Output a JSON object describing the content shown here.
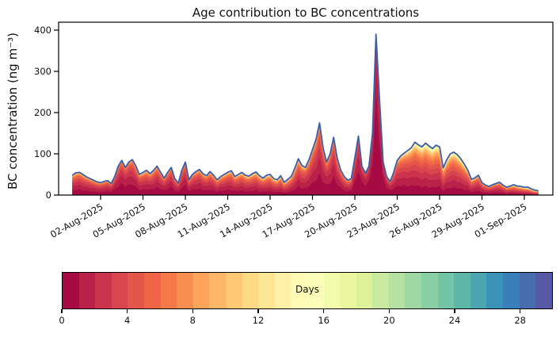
{
  "figure": {
    "background": "#ffffff"
  },
  "chart": {
    "title": "Age contribution to BC concentrations",
    "ylabel": "BC concentration (ng m⁻³)",
    "y_ticks": [
      0,
      100,
      200,
      300,
      400
    ],
    "x_tick_labels": [
      "02-Aug-2025",
      "05-Aug-2025",
      "08-Aug-2025",
      "11-Aug-2025",
      "14-Aug-2025",
      "17-Aug-2025",
      "20-Aug-2025",
      "23-Aug-2025",
      "26-Aug-2025",
      "29-Aug-2025",
      "01-Sep-2025"
    ]
  },
  "chart_data": {
    "type": "area",
    "stacked": true,
    "title": "Age contribution to BC concentrations",
    "xlabel": "",
    "ylabel": "BC concentration (ng m⁻³)",
    "ylim": [
      0,
      420
    ],
    "x_start": "31-Jul-2025 00:00",
    "x_end": "02-Sep-2025 00:00",
    "x_step_days": 0.25,
    "x_tick_dates": [
      "02-Aug-2025",
      "05-Aug-2025",
      "08-Aug-2025",
      "11-Aug-2025",
      "14-Aug-2025",
      "17-Aug-2025",
      "20-Aug-2025",
      "23-Aug-2025",
      "26-Aug-2025",
      "29-Aug-2025",
      "01-Sep-2025"
    ],
    "total": [
      48,
      54,
      55,
      50,
      44,
      40,
      36,
      32,
      30,
      33,
      35,
      28,
      45,
      70,
      84,
      67,
      80,
      86,
      70,
      50,
      55,
      60,
      52,
      60,
      70,
      55,
      41,
      55,
      67,
      40,
      29,
      60,
      80,
      37,
      50,
      57,
      62,
      52,
      47,
      57,
      48,
      37,
      45,
      50,
      55,
      59,
      45,
      50,
      55,
      48,
      46,
      52,
      56,
      47,
      41,
      48,
      50,
      40,
      37,
      47,
      31,
      38,
      45,
      65,
      88,
      72,
      67,
      85,
      110,
      135,
      175,
      115,
      80,
      100,
      140,
      90,
      60,
      45,
      36,
      40,
      90,
      143,
      70,
      53,
      70,
      150,
      390,
      230,
      80,
      45,
      33,
      55,
      84,
      95,
      102,
      108,
      115,
      128,
      122,
      117,
      126,
      119,
      113,
      121,
      117,
      66,
      85,
      100,
      104,
      98,
      88,
      75,
      60,
      38,
      42,
      48,
      30,
      24,
      21,
      25,
      28,
      31,
      24,
      19,
      22,
      25,
      22,
      21,
      19,
      19,
      15,
      12,
      10
    ],
    "age_bins_days": 30,
    "age_mean_days_anchors": [
      [
        0,
        3.2
      ],
      [
        2,
        3.0
      ],
      [
        3.4,
        2.2
      ],
      [
        4.2,
        2.4
      ],
      [
        5,
        3.2
      ],
      [
        6,
        2.8
      ],
      [
        7.8,
        2.4
      ],
      [
        9,
        3.0
      ],
      [
        11,
        3.4
      ],
      [
        13,
        3.8
      ],
      [
        15,
        4.2
      ],
      [
        16,
        3.4
      ],
      [
        17.5,
        2.6
      ],
      [
        18.6,
        2.4
      ],
      [
        19.5,
        3.0
      ],
      [
        20.2,
        1.6
      ],
      [
        21,
        1.4
      ],
      [
        21.5,
        0.9
      ],
      [
        22,
        1.2
      ],
      [
        22.8,
        2.6
      ],
      [
        23.5,
        3.6
      ],
      [
        24.5,
        4.6
      ],
      [
        25.5,
        5.0
      ],
      [
        26.5,
        4.4
      ],
      [
        27.5,
        4.6
      ],
      [
        28.5,
        3.4
      ],
      [
        29.5,
        3.0
      ],
      [
        30.5,
        3.6
      ],
      [
        31.5,
        5.0
      ],
      [
        32.5,
        6.0
      ],
      [
        33,
        6.0
      ]
    ],
    "line_color": "#3c5ca8",
    "palette": [
      "#a70b44",
      "#ba2048",
      "#cc344d",
      "#da464d",
      "#e45649",
      "#ef6545",
      "#f57848",
      "#f88e52",
      "#fca35c",
      "#fdb668",
      "#fdc776",
      "#fed884",
      "#fee594",
      "#fef0a5",
      "#fffab6",
      "#fbfdb8",
      "#f2faac",
      "#eaf79e",
      "#dcf19a",
      "#c8e99e",
      "#b5e1a2",
      "#a0d8a4",
      "#88d0a4",
      "#72c6a5",
      "#5db8a9",
      "#4ca5b1",
      "#3b92b9",
      "#397fb9",
      "#486cb0",
      "#5759a7"
    ],
    "colorbar": {
      "label": "Days",
      "vmin": 0,
      "vmax": 30,
      "ticks": [
        0,
        4,
        8,
        12,
        16,
        20,
        24,
        28
      ]
    }
  }
}
